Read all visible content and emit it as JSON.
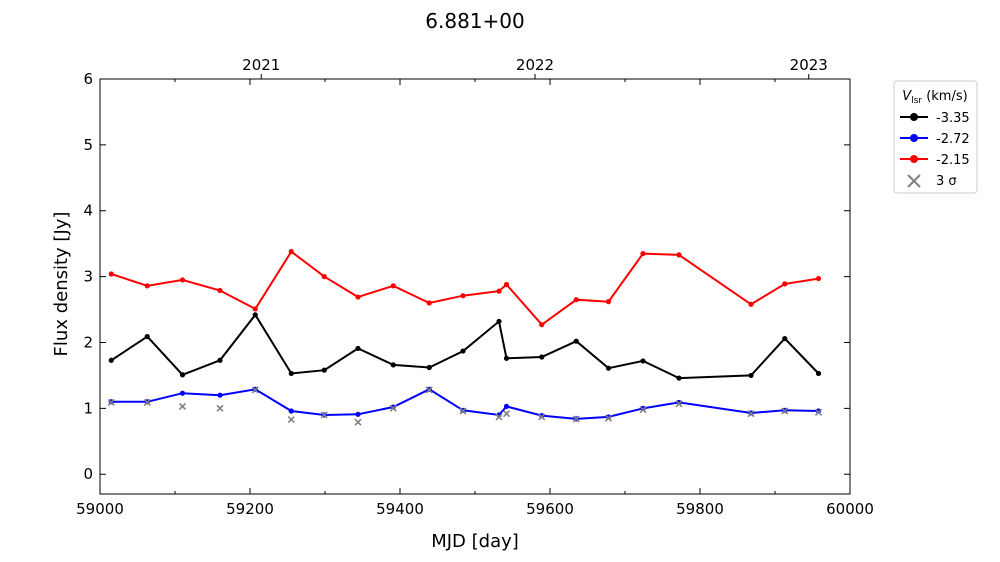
{
  "chart_data": {
    "type": "line",
    "title": "6.881+00",
    "xlabel": "MJD [day]",
    "ylabel": "Flux density [Jy]",
    "xlim": [
      59000,
      60000
    ],
    "ylim": [
      -0.3,
      6
    ],
    "xticks": [
      59000,
      59200,
      59400,
      59600,
      59800,
      60000
    ],
    "yticks": [
      0,
      1,
      2,
      3,
      4,
      5,
      6
    ],
    "top_axis": {
      "ticks": [
        {
          "x": 59215,
          "label": "2021"
        },
        {
          "x": 59580,
          "label": "2022"
        },
        {
          "x": 59945,
          "label": "2023"
        }
      ]
    },
    "grid": false,
    "legend": {
      "title_main": "V",
      "title_sub": "lsr",
      "title_rest": " (km/s)",
      "placement": "outside-top-right",
      "entries": [
        "-3.35",
        "-2.72",
        "-2.15",
        "3 σ"
      ]
    },
    "series": [
      {
        "name": "-3.35",
        "color": "#000000",
        "x": [
          59015,
          59063,
          59110,
          59160,
          59207,
          59255,
          59299,
          59344,
          59391,
          59439,
          59484,
          59532,
          59542,
          59589,
          59635,
          59678,
          59724,
          59772,
          59868,
          59913,
          59958
        ],
        "y": [
          1.73,
          2.09,
          1.51,
          1.73,
          2.42,
          1.53,
          1.58,
          1.91,
          1.66,
          1.62,
          1.87,
          2.32,
          1.76,
          1.78,
          2.02,
          1.61,
          1.72,
          1.46,
          1.5,
          2.06,
          1.53
        ]
      },
      {
        "name": "-2.72",
        "color": "#0000ff",
        "x": [
          59015,
          59063,
          59110,
          59160,
          59207,
          59255,
          59299,
          59344,
          59391,
          59439,
          59484,
          59532,
          59542,
          59589,
          59635,
          59678,
          59724,
          59772,
          59868,
          59913,
          59958
        ],
        "y": [
          1.1,
          1.1,
          1.23,
          1.2,
          1.29,
          0.96,
          0.9,
          0.91,
          1.02,
          1.29,
          0.97,
          0.9,
          1.03,
          0.89,
          0.84,
          0.87,
          1.0,
          1.09,
          0.93,
          0.97,
          0.96
        ]
      },
      {
        "name": "-2.15",
        "color": "#ff0000",
        "x": [
          59015,
          59063,
          59110,
          59160,
          59207,
          59255,
          59299,
          59344,
          59391,
          59439,
          59484,
          59532,
          59542,
          59589,
          59635,
          59678,
          59724,
          59772,
          59868,
          59913,
          59958
        ],
        "y": [
          3.04,
          2.86,
          2.95,
          2.79,
          2.51,
          3.38,
          3.0,
          2.69,
          2.86,
          2.6,
          2.71,
          2.78,
          2.88,
          2.27,
          2.65,
          2.62,
          3.35,
          3.33,
          2.58,
          2.89,
          2.97
        ]
      }
    ],
    "sigma": {
      "name": "3 σ",
      "color": "#808080",
      "x": [
        59015,
        59063,
        59110,
        59160,
        59207,
        59255,
        59299,
        59344,
        59391,
        59439,
        59484,
        59532,
        59542,
        59589,
        59635,
        59678,
        59724,
        59772,
        59868,
        59913,
        59958
      ],
      "y": [
        1.09,
        1.09,
        1.03,
        1.0,
        1.28,
        0.83,
        0.9,
        0.79,
        1.0,
        1.28,
        0.96,
        0.87,
        0.92,
        0.87,
        0.84,
        0.85,
        0.98,
        1.07,
        0.92,
        0.96,
        0.94
      ]
    }
  }
}
